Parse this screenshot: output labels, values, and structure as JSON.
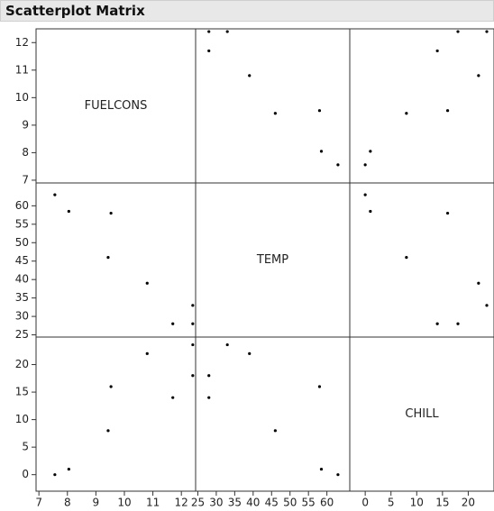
{
  "chart_data": {
    "type": "scatter_matrix",
    "title": "Scatterplot Matrix",
    "variables": [
      {
        "name": "FUELCONS",
        "lim": [
          6.9,
          12.5
        ],
        "ticks": [
          7,
          8,
          9,
          10,
          11,
          12
        ],
        "values": [
          7.56,
          8.05,
          9.43,
          9.53,
          10.8,
          11.7,
          12.4,
          12.4
        ]
      },
      {
        "name": "TEMP",
        "lim": [
          24.4,
          66.2
        ],
        "ticks": [
          25,
          30,
          35,
          40,
          45,
          50,
          55,
          60
        ],
        "values": [
          63,
          58.5,
          46,
          58,
          39,
          28,
          33,
          28
        ]
      },
      {
        "name": "CHILL",
        "lim": [
          -3,
          25
        ],
        "ticks": [
          0,
          5,
          10,
          15,
          20
        ],
        "values": [
          0,
          1,
          8,
          16,
          22,
          14,
          23.6,
          18
        ]
      }
    ]
  }
}
